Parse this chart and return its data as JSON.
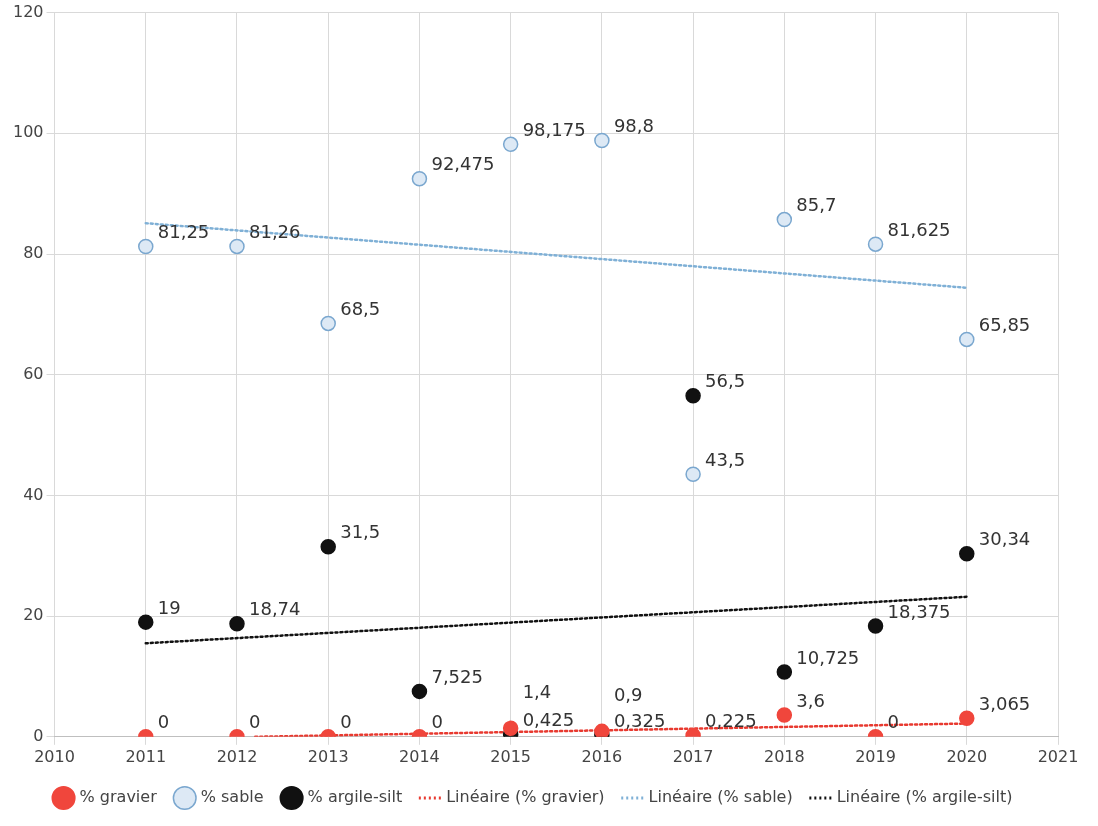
{
  "chart_data": {
    "type": "scatter",
    "x": [
      2011,
      2012,
      2013,
      2014,
      2015,
      2016,
      2017,
      2018,
      2019,
      2020
    ],
    "xlim": [
      2010,
      2021
    ],
    "xticks": [
      2010,
      2011,
      2012,
      2013,
      2014,
      2015,
      2016,
      2017,
      2018,
      2019,
      2020,
      2021
    ],
    "ylim": [
      0,
      120
    ],
    "yticks": [
      0,
      20,
      40,
      60,
      80,
      100,
      120
    ],
    "grid": true,
    "legend": "bottom",
    "marker": "circle",
    "series": [
      {
        "name": "% gravier",
        "type": "scatter",
        "color": "#f0463c",
        "values": [
          0,
          0,
          0,
          0,
          1.4,
          0.9,
          0.225,
          3.6,
          0,
          3.065
        ],
        "value_labels": [
          "0",
          "0",
          "0",
          "0",
          "1,4",
          "0,9",
          "0,225",
          "3,6",
          "0",
          "3,065"
        ]
      },
      {
        "name": "% sable",
        "type": "scatter",
        "color": "#dde9f5",
        "values": [
          81.25,
          81.26,
          68.5,
          92.475,
          98.175,
          98.8,
          43.5,
          85.7,
          81.625,
          65.85
        ],
        "value_labels": [
          "81,25",
          "81,26",
          "68,5",
          "92,475",
          "98,175",
          "98,8",
          "43,5",
          "85,7",
          "81,625",
          "65,85"
        ]
      },
      {
        "name": "% argile-silt",
        "type": "scatter",
        "color": "#111111",
        "values": [
          19,
          18.74,
          31.5,
          7.525,
          0.425,
          0.325,
          56.5,
          10.725,
          18.375,
          30.34
        ],
        "value_labels": [
          "19",
          "18,74",
          "31,5",
          "7,525",
          "0,425",
          "0,325",
          "56,5",
          "10,725",
          "18,375",
          "30,34"
        ]
      },
      {
        "name": "Linéaire (% gravier)",
        "type": "line",
        "line_style": "dotted",
        "marker": "none",
        "color": "#e8392f",
        "x": [
          2012.2,
          2020
        ],
        "values": [
          0,
          2.2
        ]
      },
      {
        "name": "Linéaire (% sable)",
        "type": "line",
        "line_style": "dotted",
        "marker": "none",
        "color": "#7fb0d6",
        "x": [
          2011,
          2020
        ],
        "values": [
          85.1,
          74.4
        ]
      },
      {
        "name": "Linéaire (% argile-silt)",
        "type": "line",
        "line_style": "dotted",
        "marker": "none",
        "color": "#111111",
        "x": [
          2011,
          2020
        ],
        "values": [
          15.5,
          23.2
        ]
      }
    ]
  }
}
